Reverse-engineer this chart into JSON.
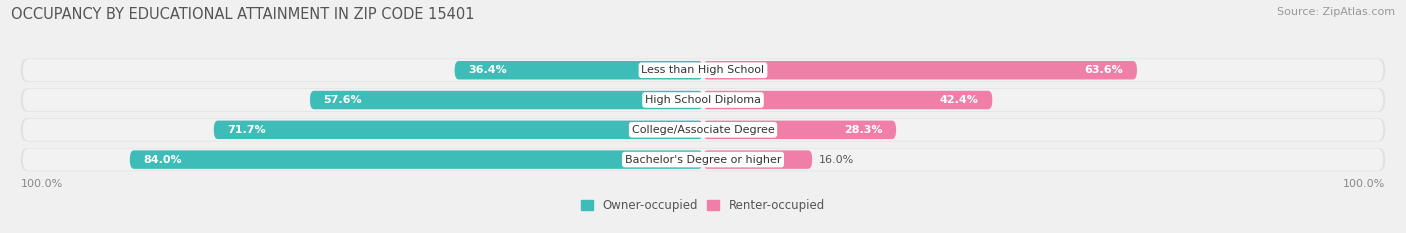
{
  "title": "OCCUPANCY BY EDUCATIONAL ATTAINMENT IN ZIP CODE 15401",
  "source": "Source: ZipAtlas.com",
  "categories": [
    "Less than High School",
    "High School Diploma",
    "College/Associate Degree",
    "Bachelor's Degree or higher"
  ],
  "owner_pct": [
    36.4,
    57.6,
    71.7,
    84.0
  ],
  "renter_pct": [
    63.6,
    42.4,
    28.3,
    16.0
  ],
  "owner_color": "#3dbcb8",
  "renter_color": "#f07fa8",
  "row_bg_color": "#e8e8e8",
  "row_inner_bg": "#f4f4f4",
  "axis_label_left": "100.0%",
  "axis_label_right": "100.0%",
  "legend_owner": "Owner-occupied",
  "legend_renter": "Renter-occupied",
  "title_fontsize": 10.5,
  "source_fontsize": 8,
  "bar_label_fontsize": 8,
  "category_fontsize": 8,
  "axis_fontsize": 8,
  "legend_fontsize": 8.5,
  "fig_bg": "#f0f0f0"
}
